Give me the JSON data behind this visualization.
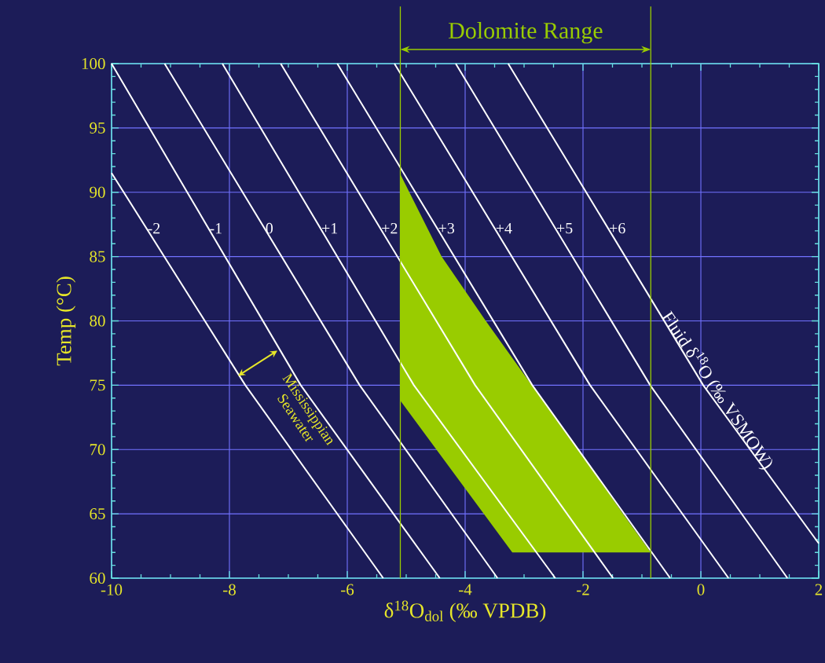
{
  "chart_data": {
    "type": "line",
    "xlabel": "δ$^{18}$O$_{dol}$ (‰ VPDB)",
    "ylabel": "Temp (°C)",
    "xlim": [
      -10,
      2
    ],
    "ylim": [
      60,
      100
    ],
    "xticks": [
      -10,
      -8,
      -6,
      -4,
      -2,
      0,
      2
    ],
    "yticks": [
      60,
      65,
      70,
      75,
      80,
      85,
      90,
      95,
      100
    ],
    "grid": true,
    "series": [
      {
        "type": "area",
        "color": "#99cc00",
        "x": [
          -5.1,
          -4.4,
          -3.65,
          -2.87,
          -2.07,
          -1.32,
          -0.85,
          -3.2,
          -5.1
        ],
        "values": [
          91.4,
          85,
          80,
          75,
          70,
          65,
          62,
          62,
          73.8
        ]
      },
      {
        "name": "-2",
        "color": "#ffffff",
        "x": [
          -10,
          -7.73,
          -5.39
        ],
        "values": [
          91.5,
          75,
          60
        ]
      },
      {
        "name": "-1",
        "color": "#ffffff",
        "x": [
          -10,
          -6.79,
          -4.43
        ],
        "values": [
          100,
          75,
          60
        ]
      },
      {
        "name": "0",
        "color": "#ffffff",
        "x": [
          -9.1,
          -5.79,
          -3.45
        ],
        "values": [
          100,
          75,
          60
        ]
      },
      {
        "name": "+1",
        "color": "#ffffff",
        "x": [
          -8.12,
          -4.87,
          -2.47
        ],
        "values": [
          100,
          75,
          60
        ]
      },
      {
        "name": "+2",
        "color": "#ffffff",
        "x": [
          -7.13,
          -3.83,
          -1.49
        ],
        "values": [
          100,
          75,
          60
        ]
      },
      {
        "name": "+3",
        "color": "#ffffff",
        "x": [
          -6.17,
          -2.86,
          -0.52
        ],
        "values": [
          100,
          75,
          60
        ]
      },
      {
        "name": "+4",
        "color": "#ffffff",
        "x": [
          -5.2,
          -1.88,
          0.47
        ],
        "values": [
          100,
          75,
          60
        ]
      },
      {
        "name": "+5",
        "color": "#ffffff",
        "x": [
          -4.16,
          -0.86,
          1.47
        ],
        "values": [
          100,
          75,
          60
        ]
      },
      {
        "name": "+6",
        "color": "#ffffff",
        "x": [
          -3.27,
          0.04,
          2
        ],
        "values": [
          100,
          75,
          62.7
        ]
      }
    ],
    "ref_lines": [
      {
        "axis": "x",
        "value": -5.1,
        "color": "#99cc00"
      },
      {
        "axis": "x",
        "value": -0.85,
        "color": "#99cc00"
      }
    ],
    "annotations": [
      "Dolomite Range",
      "Mississippian Seawater",
      "Fluid δ$^{18}$O (‰ VSMOW)"
    ]
  }
}
